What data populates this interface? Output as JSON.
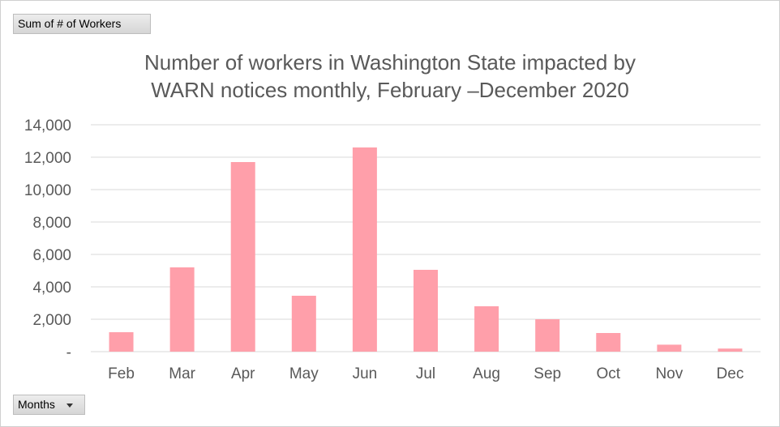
{
  "pivot": {
    "value_field": "Sum of # of Workers",
    "axis_field": "Months"
  },
  "colors": {
    "bar": "#ff9faa",
    "grid": "#d9d9d9",
    "text": "#595959"
  },
  "chart_data": {
    "type": "bar",
    "title": "Number of workers in Washington State impacted by WARN notices monthly, February –December 2020",
    "title_lines": [
      "Number of workers in Washington State impacted by",
      "WARN notices monthly, February –December 2020"
    ],
    "categories": [
      "Feb",
      "Mar",
      "Apr",
      "May",
      "Jun",
      "Jul",
      "Aug",
      "Sep",
      "Oct",
      "Nov",
      "Dec"
    ],
    "values": [
      1200,
      5200,
      11700,
      3450,
      12600,
      5050,
      2800,
      2000,
      1150,
      430,
      190
    ],
    "ylim": [
      0,
      14000
    ],
    "yticks": [
      0,
      2000,
      4000,
      6000,
      8000,
      10000,
      12000,
      14000
    ],
    "ytick_labels": [
      "-",
      "2,000",
      "4,000",
      "6,000",
      "8,000",
      "10,000",
      "12,000",
      "14,000"
    ],
    "xlabel": "",
    "ylabel": "",
    "grid": true,
    "legend": "none"
  }
}
